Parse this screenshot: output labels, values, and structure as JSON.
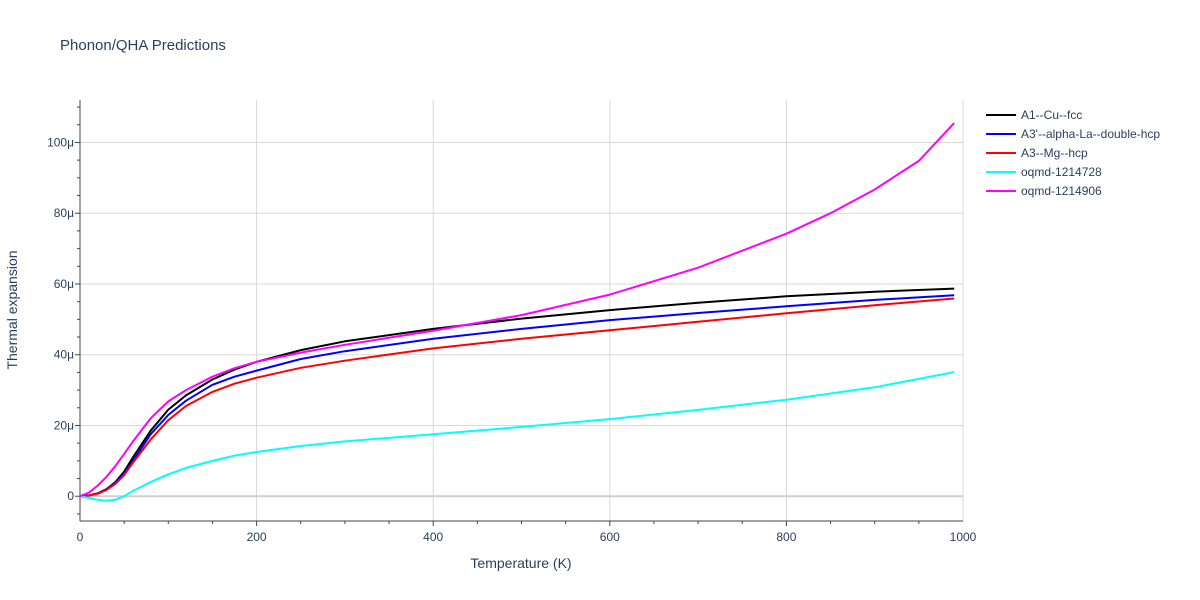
{
  "chart_data": {
    "type": "line",
    "title": "Phonon/QHA Predictions",
    "xlabel": "Temperature (K)",
    "ylabel": "Thermal expansion",
    "xlim": [
      0,
      1000
    ],
    "ylim": [
      -7,
      112
    ],
    "x_ticks": [
      0,
      200,
      400,
      600,
      800,
      1000
    ],
    "x_tick_labels": [
      "0",
      "200",
      "400",
      "600",
      "800",
      "1000"
    ],
    "y_ticks": [
      0,
      20,
      40,
      60,
      80,
      100
    ],
    "y_tick_labels": [
      "0",
      "20μ",
      "40μ",
      "60μ",
      "80μ",
      "100μ"
    ],
    "grid": true,
    "legend_position": "right",
    "series": [
      {
        "name": "A1--Cu--fcc",
        "color": "#000000",
        "x": [
          0,
          10,
          20,
          30,
          40,
          50,
          60,
          80,
          100,
          120,
          150,
          175,
          200,
          250,
          300,
          400,
          500,
          600,
          700,
          800,
          900,
          990
        ],
        "y": [
          0,
          0.2,
          0.8,
          2,
          4,
          7,
          11,
          18.5,
          24.5,
          28.5,
          33,
          35.8,
          38,
          41.3,
          43.8,
          47.3,
          50.2,
          52.6,
          54.7,
          56.5,
          57.8,
          58.7
        ]
      },
      {
        "name": "A3'--alpha-La--double-hcp",
        "color": "#0000ff",
        "x": [
          0,
          10,
          20,
          30,
          40,
          50,
          60,
          80,
          100,
          120,
          150,
          175,
          200,
          250,
          300,
          400,
          500,
          600,
          700,
          800,
          900,
          990
        ],
        "y": [
          0,
          0.2,
          0.8,
          2,
          3.8,
          6.5,
          10,
          17.5,
          23,
          27,
          31.5,
          33.8,
          35.5,
          38.8,
          41,
          44.5,
          47.3,
          49.8,
          51.8,
          53.7,
          55.5,
          56.8
        ]
      },
      {
        "name": "A3--Mg--hcp",
        "color": "#ff0000",
        "x": [
          0,
          10,
          20,
          30,
          40,
          50,
          60,
          80,
          100,
          120,
          150,
          175,
          200,
          250,
          300,
          400,
          500,
          600,
          700,
          800,
          900,
          990
        ],
        "y": [
          0,
          0.2,
          0.7,
          1.8,
          3.5,
          6,
          9.5,
          16,
          21.5,
          25.5,
          29.5,
          31.8,
          33.5,
          36.3,
          38.3,
          41.8,
          44.5,
          46.9,
          49.3,
          51.7,
          54,
          55.9
        ]
      },
      {
        "name": "oqmd-1214728",
        "color": "#00ffff",
        "x": [
          0,
          10,
          20,
          30,
          40,
          50,
          60,
          80,
          100,
          120,
          150,
          175,
          200,
          250,
          300,
          400,
          500,
          600,
          700,
          800,
          900,
          990
        ],
        "y": [
          0,
          -0.5,
          -1,
          -1.3,
          -1,
          0,
          1.5,
          4,
          6.2,
          8,
          10,
          11.5,
          12.5,
          14.2,
          15.5,
          17.5,
          19.6,
          21.8,
          24.4,
          27.3,
          30.8,
          35.1
        ]
      },
      {
        "name": "oqmd-1214906",
        "color": "#ff00ff",
        "x": [
          0,
          10,
          20,
          30,
          40,
          50,
          60,
          80,
          100,
          120,
          150,
          175,
          200,
          250,
          300,
          400,
          500,
          600,
          700,
          800,
          850,
          900,
          950,
          990
        ],
        "y": [
          0,
          1,
          3,
          5.5,
          8.5,
          12,
          15.5,
          22,
          26.8,
          30,
          33.8,
          36.2,
          38,
          40.6,
          42.8,
          46.8,
          51.2,
          57,
          64.6,
          74.2,
          80,
          86.7,
          94.8,
          105.5
        ]
      }
    ]
  }
}
